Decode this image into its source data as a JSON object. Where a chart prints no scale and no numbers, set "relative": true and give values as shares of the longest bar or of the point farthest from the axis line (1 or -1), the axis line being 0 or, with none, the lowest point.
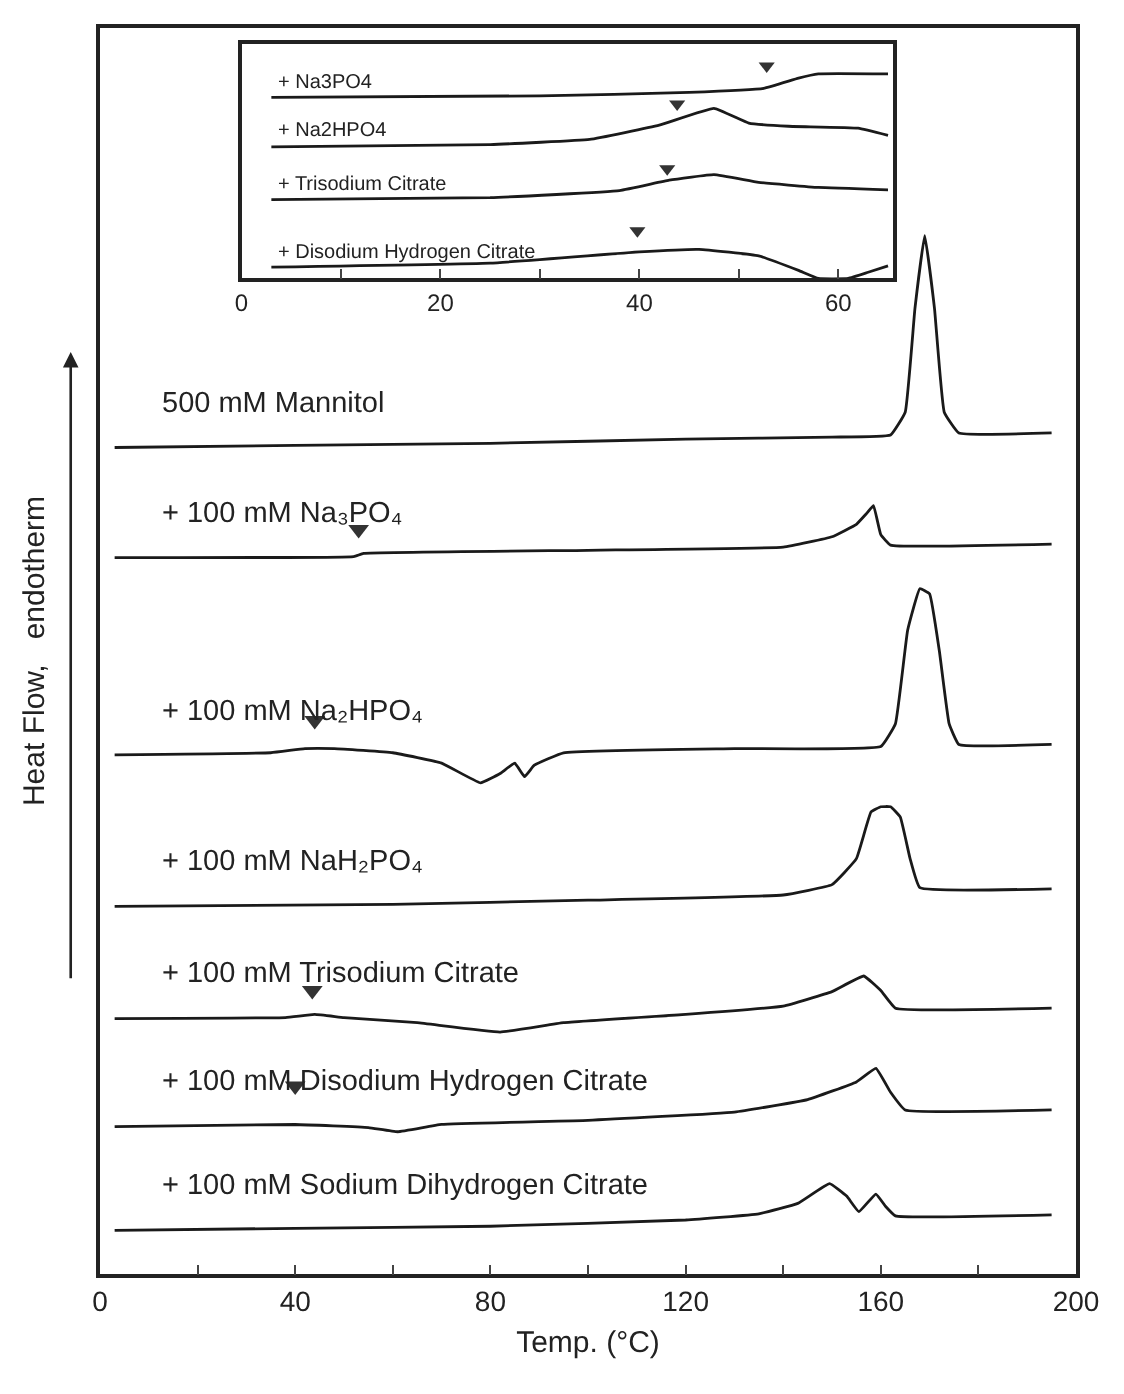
{
  "chart_data": [
    {
      "type": "line",
      "relative": true,
      "xlabel": "Temp. (°C)",
      "ylabel": "Heat Flow,   endotherm",
      "xlim": [
        0,
        200
      ],
      "xticks": [
        0,
        {
          "value": 20,
          "label": null
        },
        40,
        {
          "value": 60,
          "label": null
        },
        80,
        {
          "value": 100,
          "label": null
        },
        120,
        {
          "value": 140,
          "label": null
        },
        160,
        {
          "value": 180,
          "label": null
        },
        200
      ],
      "series": [
        {
          "name": "500 mM Mannitol",
          "color": "#1a1a1a",
          "x": [
            3,
            40,
            80,
            120,
            150,
            162,
            165,
            167,
            169,
            171,
            173,
            176,
            195
          ],
          "values": [
            0.796,
            0.798,
            0.8,
            0.804,
            0.806,
            0.808,
            0.83,
            0.93,
            1.0,
            0.93,
            0.83,
            0.81,
            0.81
          ]
        },
        {
          "name": "+ 100 mM Na₃PO₄",
          "color": "#1a1a1a",
          "x": [
            3,
            52,
            54,
            100,
            140,
            150,
            155,
            157,
            158.5,
            160,
            162,
            195
          ],
          "values": [
            0.69,
            0.691,
            0.694,
            0.697,
            0.7,
            0.71,
            0.722,
            0.732,
            0.74,
            0.712,
            0.702,
            0.703
          ]
        },
        {
          "name": "+ 100 mM Na₂HPO₄",
          "color": "#1a1a1a",
          "x": [
            3,
            35,
            42,
            48,
            60,
            70,
            78,
            82,
            85,
            87,
            89,
            95,
            130,
            160,
            163,
            165.5,
            168,
            170,
            172,
            174,
            176,
            195
          ],
          "values": [
            0.5,
            0.502,
            0.506,
            0.506,
            0.502,
            0.492,
            0.473,
            0.482,
            0.492,
            0.479,
            0.49,
            0.502,
            0.506,
            0.508,
            0.53,
            0.62,
            0.66,
            0.655,
            0.6,
            0.53,
            0.51,
            0.51
          ]
        },
        {
          "name": "+ 100 mM NaH₂PO₄",
          "color": "#1a1a1a",
          "x": [
            3,
            60,
            100,
            140,
            150,
            155,
            158,
            160,
            162,
            164,
            166,
            168,
            195
          ],
          "values": [
            0.354,
            0.356,
            0.36,
            0.365,
            0.375,
            0.4,
            0.445,
            0.45,
            0.45,
            0.44,
            0.4,
            0.372,
            0.371
          ]
        },
        {
          "name": "+ 100 mM Trisodium Citrate",
          "color": "#1a1a1a",
          "x": [
            3,
            38,
            44,
            50,
            65,
            82,
            95,
            120,
            140,
            150,
            156.5,
            160,
            163,
            195
          ],
          "values": [
            0.246,
            0.247,
            0.25,
            0.247,
            0.242,
            0.233,
            0.242,
            0.25,
            0.258,
            0.272,
            0.287,
            0.273,
            0.256,
            0.256
          ]
        },
        {
          "name": "+ 100 mM Disodium Hydrogen Citrate",
          "color": "#1a1a1a",
          "x": [
            3,
            40,
            55,
            61,
            70,
            100,
            130,
            145,
            155,
            159,
            162,
            165,
            195
          ],
          "values": [
            0.142,
            0.144,
            0.141,
            0.137,
            0.144,
            0.148,
            0.156,
            0.168,
            0.185,
            0.198,
            0.175,
            0.158,
            0.158
          ]
        },
        {
          "name": "+ 100 mM Sodium Dihydrogen Citrate",
          "color": "#1a1a1a",
          "x": [
            3,
            40,
            80,
            120,
            135,
            143,
            149.5,
            153,
            155.5,
            159,
            161,
            163,
            195
          ],
          "values": [
            0.042,
            0.044,
            0.046,
            0.052,
            0.058,
            0.068,
            0.087,
            0.075,
            0.06,
            0.077,
            0.065,
            0.056,
            0.057
          ]
        },
        {
          "type": "scatter",
          "marker": "triangle",
          "color": "#333333",
          "x": [
            53,
            44,
            43.5,
            40
          ],
          "values": [
            0.717,
            0.533,
            0.273,
            0.181
          ]
        }
      ]
    },
    {
      "type": "line",
      "relative": true,
      "xlim": [
        0,
        65.5
      ],
      "xticks": [
        0,
        {
          "value": 10,
          "label": null
        },
        20,
        {
          "value": 30,
          "label": null
        },
        40,
        {
          "value": 50,
          "label": null
        },
        60
      ],
      "series": [
        {
          "name": "+ Na3PO4",
          "color": "#1a1a1a",
          "x": [
            3,
            30,
            45,
            52.5,
            56,
            58,
            65
          ],
          "values": [
            0.852,
            0.859,
            0.875,
            0.894,
            0.942,
            0.962,
            0.962
          ]
        },
        {
          "name": "+ Na2HPO4",
          "color": "#1a1a1a",
          "x": [
            3,
            25,
            35,
            42,
            47.5,
            51,
            55,
            62,
            65
          ],
          "values": [
            0.619,
            0.63,
            0.654,
            0.721,
            0.8,
            0.731,
            0.716,
            0.707,
            0.673
          ]
        },
        {
          "name": "+ Trisodium Citrate",
          "color": "#1a1a1a",
          "x": [
            3,
            25,
            38,
            43,
            47.5,
            52,
            58,
            65
          ],
          "values": [
            0.371,
            0.38,
            0.413,
            0.462,
            0.488,
            0.452,
            0.428,
            0.417
          ]
        },
        {
          "name": "+ Disodium Hydrogen Citrate",
          "color": "#1a1a1a",
          "x": [
            3,
            25,
            40,
            46,
            52,
            56,
            58,
            61,
            63,
            65
          ],
          "values": [
            0.053,
            0.072,
            0.125,
            0.137,
            0.106,
            0.038,
            0,
            0,
            0.029,
            0.059
          ]
        },
        {
          "type": "scatter",
          "marker": "triangle",
          "color": "#333333",
          "x": [
            52.8,
            43.8,
            42.8,
            39.8
          ],
          "values": [
            1.0,
            0.821,
            0.516,
            0.224
          ]
        }
      ]
    }
  ]
}
